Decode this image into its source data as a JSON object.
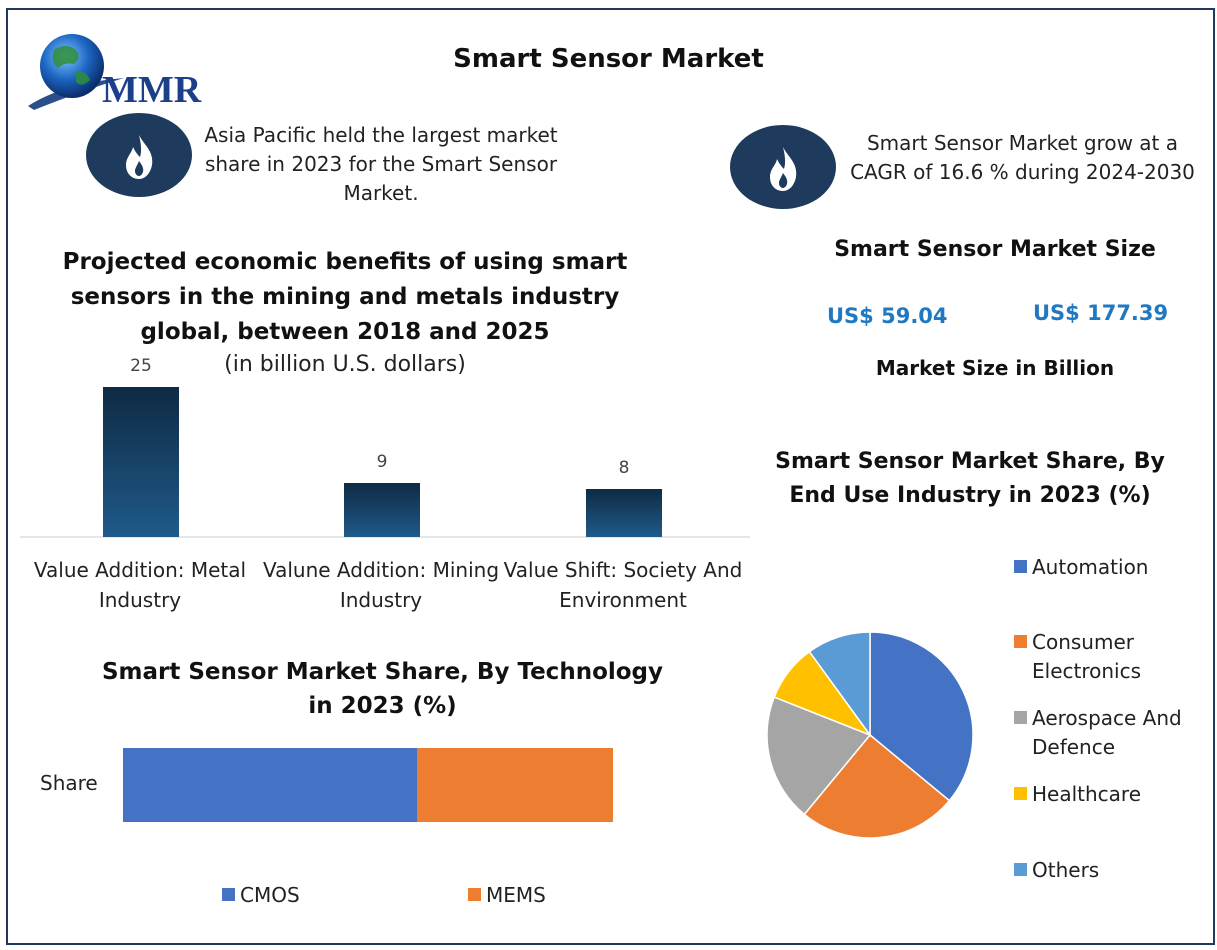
{
  "title": "Smart Sensor Market",
  "logo": {
    "text": "MMR"
  },
  "notes": {
    "left": [
      "Asia Pacific held the largest market",
      "share in 2023 for the Smart Sensor",
      "Market."
    ],
    "right": [
      "Smart Sensor Market grow at a",
      "CAGR of 16.6 % during 2024-2030"
    ]
  },
  "market_size": {
    "heading": "Smart Sensor Market Size",
    "value_2023": "US$ 59.04",
    "value_2030": "US$ 177.39",
    "caption": "Market Size in Billion"
  },
  "chart_data": [
    {
      "type": "bar",
      "title": [
        "Projected economic benefits of using smart",
        "sensors in the mining and metals industry",
        "global, between 2018 and 2025"
      ],
      "subtitle": "(in billion U.S. dollars)",
      "categories": [
        [
          "Value Addition: Metal",
          "Industry"
        ],
        [
          "Valune Addition: Mining",
          "Industry"
        ],
        [
          "Value Shift: Society And",
          "Environment"
        ]
      ],
      "values": [
        25,
        9,
        8
      ],
      "data_labels": [
        "25",
        "9",
        "8"
      ],
      "ylim": [
        0,
        25
      ],
      "grid": false
    },
    {
      "type": "bar",
      "orientation": "horizontal-stacked",
      "title": [
        "Smart Sensor Market Share, By Technology",
        "in 2023 (%)"
      ],
      "categories": [
        "Share"
      ],
      "series": [
        {
          "name": "CMOS",
          "values": [
            60
          ],
          "color": "#4472c4"
        },
        {
          "name": "MEMS",
          "values": [
            40
          ],
          "color": "#ed7d31"
        }
      ],
      "legend": "bottom"
    },
    {
      "type": "pie",
      "title": [
        "Smart Sensor Market Share, By",
        "End Use Industry in 2023 (%)"
      ],
      "labels": [
        "Automation",
        "Consumer Electronics",
        "Aerospace And Defence",
        "Healthcare",
        "Others"
      ],
      "legend_lines": [
        [
          "Automation"
        ],
        [
          "Consumer",
          "Electronics"
        ],
        [
          "Aerospace And",
          "Defence"
        ],
        [
          "Healthcare"
        ],
        [
          "Others"
        ]
      ],
      "values": [
        36,
        25,
        20,
        9,
        10
      ],
      "colors": [
        "#4472c4",
        "#ed7d31",
        "#a5a5a5",
        "#ffc000",
        "#5b9bd5"
      ],
      "legend": "right"
    }
  ],
  "colors": {
    "navy": "#1e3a5c",
    "bar_top": "#0f2a44",
    "bar_bottom": "#1f5a8a",
    "accent_blue": "#1f78c0"
  }
}
